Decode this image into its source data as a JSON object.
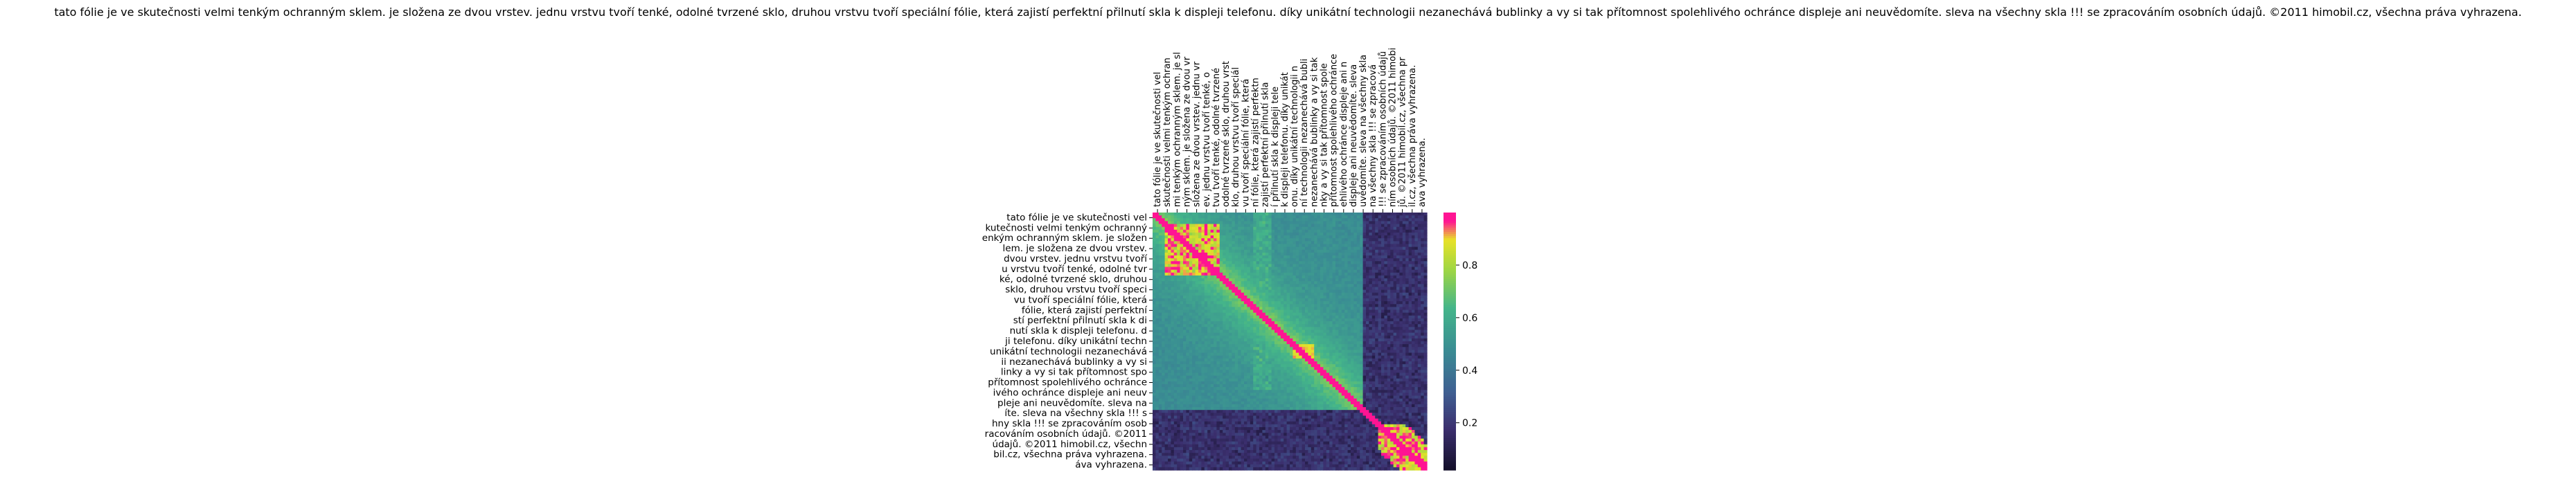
{
  "title": "tato fólie je ve skutečnosti velmi tenkým ochranným sklem. je složena ze dvou vrstev. jednu vrstvu tvoří tenké, odolné tvrzené sklo, druhou vrstvu tvoří speciální fólie, která zajistí perfektní přilnutí skla k displeji telefonu. díky unikátní technologii nezanechává bublinky a vy si tak přítomnost spolehlivého ochránce displeje ani neuvědomíte. sleva na všechny skla !!! se zpracováním osobních údajů. ©2011 himobil.cz, všechna práva vyhrazena.",
  "chart_data": {
    "type": "heatmap",
    "title": "tato fólie je ve skutečnosti velmi tenkým ochranným sklem. je složena ze dvou vrstev. jednu vrstvu tvoří tenké, odolné tvrzené sklo, druhou vrstvu tvoří speciální fólie, která zajistí perfektní přilnutí skla k displeji telefonu. díky unikátní technologii nezanechává bublinky a vy si tak přítomnost spolehlivého ochránce displeje ani neuvědomíte. sleva na všechny skla !!! se zpracováním osobních údajů. ©2011 himobil.cz, všechna práva vyhrazena.",
    "row_labels": [
      "tato fólie je ve skutečnosti vel",
      "kutečnosti velmi tenkým ochranný",
      "enkým ochranným sklem. je složen",
      "lem. je složena ze dvou vrstev.",
      "dvou vrstev. jednu vrstvu tvoří",
      "u vrstvu tvoří tenké, odolné tvr",
      "ké, odolné tvrzené sklo, druhou",
      "sklo, druhou vrstvu tvoří speci",
      "vu tvoří speciální fólie, která",
      "fólie, která zajistí perfektní",
      "stí perfektní přilnutí skla k di",
      "nutí skla k displeji telefonu. d",
      "ji telefonu. díky unikátní techn",
      "unikátní technologii nezanechává",
      "ii nezanechává bublinky a vy si",
      "linky a vy si tak přítomnost spo",
      "přítomnost spolehlivého ochránce",
      "ivého ochránce displeje ani neuv",
      "pleje ani neuvědomíte. sleva na",
      "íte. sleva na všechny skla !!! s",
      "hny skla !!! se zpracováním osob",
      "racováním osobních údajů. ©2011",
      "údajů. ©2011 himobil.cz, všechn",
      "bil.cz, všechna práva vyhrazena.",
      "áva vyhrazena."
    ],
    "col_labels": [
      "tato fólie je ve skutečnosti vel",
      "skutečnosti velmi tenkým ochran",
      "mi tenkým ochranným sklem. je sl",
      "ným sklem. je složena ze dvou vr",
      "složena ze dvou vrstev. jednu vr",
      "ev. jednu vrstvu tvoří tenké, o",
      "tvu tvoří tenké, odolné tvrzené",
      "odolné tvrzené sklo, druhou vrst",
      "klo, druhou vrstvu tvoří speciál",
      "vu tvoří speciální fólie, která",
      "ní fólie, která zajistí perfektn",
      "zajistí perfektní přilnutí skla",
      "í přilnutí skla k displeji tele",
      "k displeji telefonu. díky unikát",
      "onu. díky unikátní technologii n",
      "ní technologii nezanechává bubli",
      "nezanechává bublinky a vy si tak",
      "nky a vy si tak přítomnost spole",
      "přítomnost spolehlivého ochránce",
      "ehlivého ochránce displeje ani n",
      "displeje ani neuvědomíte. sleva",
      "uvědomíte. sleva na všechny skla",
      "na všechny skla !!! se zpracová",
      "!!! se zpracováním osobních údajů",
      "ním osobních údajů. ©2011 himobi",
      "jů. ©2011 himobil.cz, všechna pr",
      "il.cz, všechna práva vyhrazena.",
      "ava vyhrazena."
    ],
    "colorbar": {
      "ticks": [
        0.2,
        0.4,
        0.6,
        0.8
      ],
      "range": [
        0.02,
        1.0
      ]
    },
    "colormap": [
      "#0d0a1f",
      "#3b2f6e",
      "#3f5f92",
      "#3a8c93",
      "#44b58a",
      "#9bd546",
      "#e8e227",
      "#ff1493"
    ],
    "approx_structure": {
      "note": "Token-by-token similarity matrix; diagonal ≈ 1.0",
      "high_block_token_range": [
        0.04,
        0.24
      ],
      "high_block_values": [
        0.75,
        0.95
      ],
      "dark_tail_token_range": [
        0.78,
        1.0
      ],
      "dark_tail_values": [
        0.02,
        0.2
      ]
    }
  }
}
